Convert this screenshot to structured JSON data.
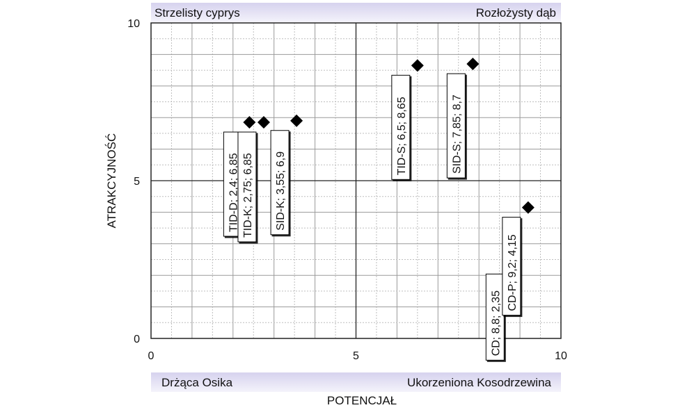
{
  "chart_data": {
    "type": "scatter",
    "title": "",
    "xlabel": "POTENCJAŁ",
    "ylabel": "ATRAKCYJNOŚĆ",
    "xlim": [
      0,
      10
    ],
    "ylim": [
      0,
      10
    ],
    "x_ticks": [
      "0",
      "5",
      "10"
    ],
    "y_ticks": [
      "0",
      "5",
      "10"
    ],
    "grid": true,
    "quadrant_dividers": {
      "x": 5,
      "y": 5
    },
    "quadrant_labels": {
      "top_left": "Strzelisty cyprys",
      "top_right": "Rozłożysty dąb",
      "bottom_left": "Drżąca Osika",
      "bottom_right": "Ukorzeniona Kosodrzewina"
    },
    "marker": "diamond",
    "marker_color": "#000000",
    "points": [
      {
        "label": "TID-D; 2,4; 6,85",
        "x": 2.4,
        "y": 6.85
      },
      {
        "label": "TID-K; 2,75; 6,85",
        "x": 2.75,
        "y": 6.85
      },
      {
        "label": "SID-K; 3,55; 6,9",
        "x": 3.55,
        "y": 6.9
      },
      {
        "label": "TID-S; 6,5; 8,65",
        "x": 6.5,
        "y": 8.65
      },
      {
        "label": "SID-S; 7,85; 8,7",
        "x": 7.85,
        "y": 8.7
      },
      {
        "label": "CD; 8,8; 2,35",
        "x": 8.8,
        "y": 2.35
      },
      {
        "label": "CD-P; 9,2; 4,15",
        "x": 9.2,
        "y": 4.15
      }
    ]
  }
}
